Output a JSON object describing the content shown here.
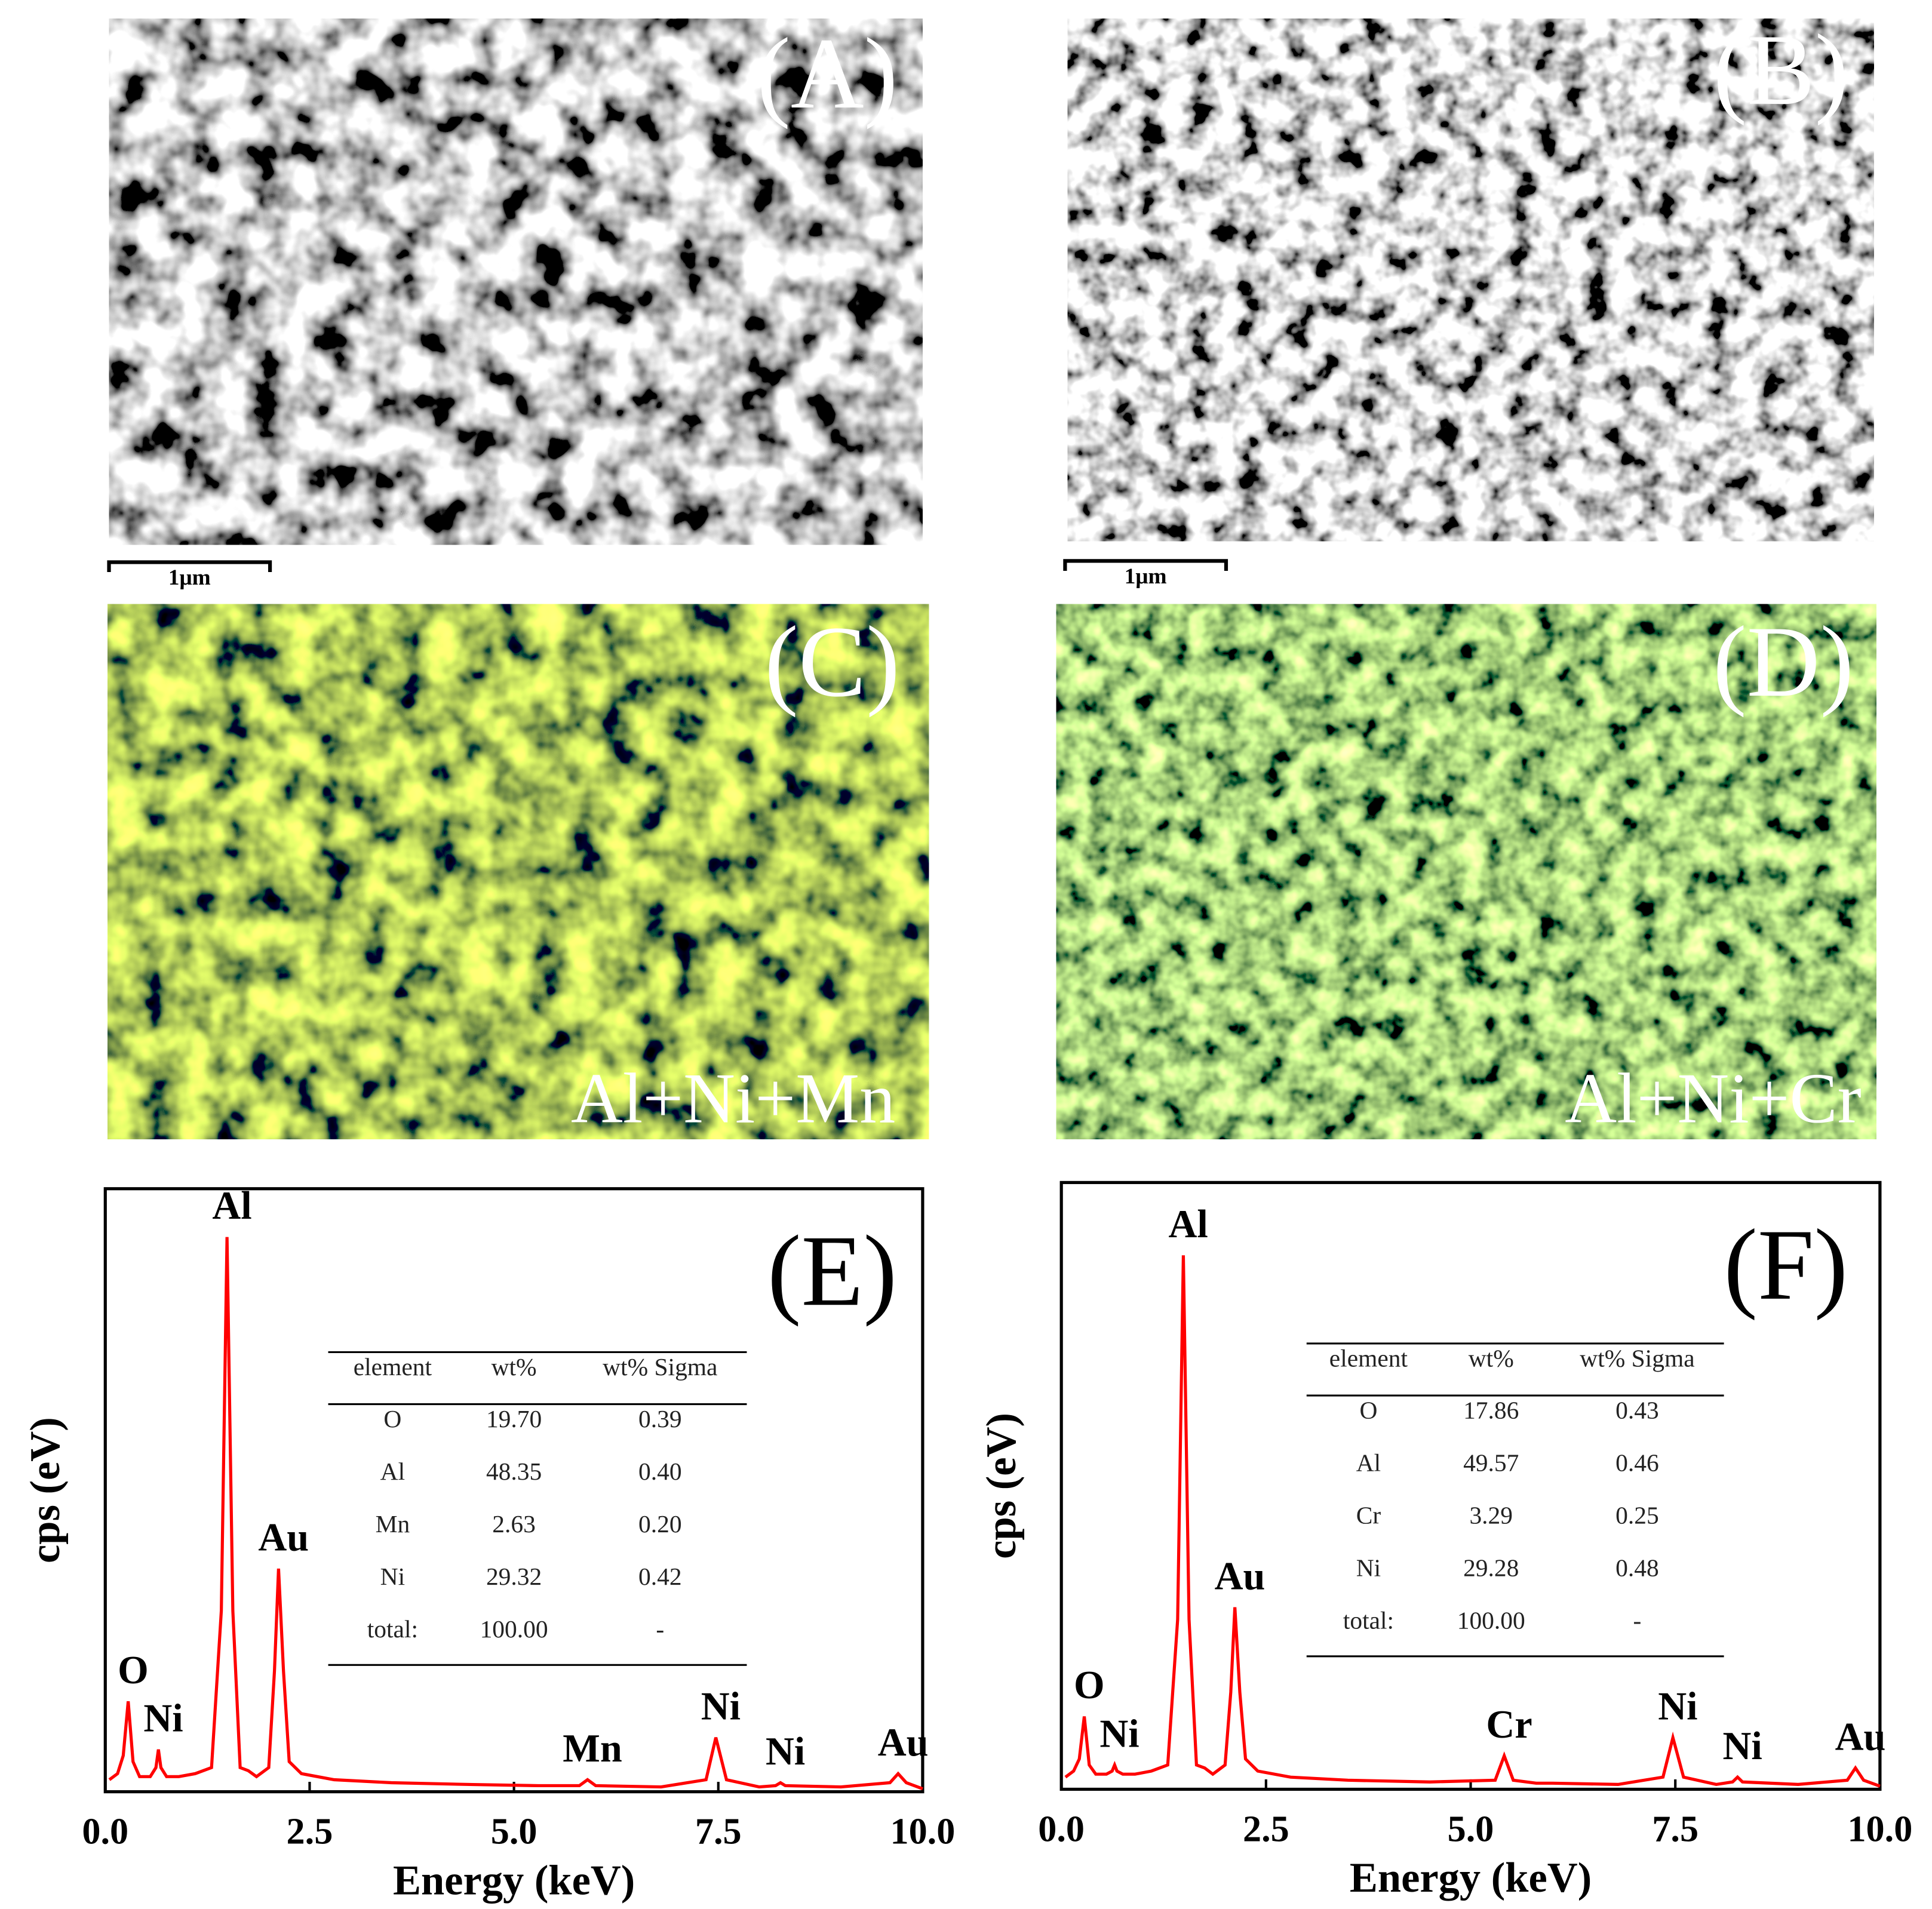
{
  "panels": [
    {
      "label": "(A)",
      "scale_bar": "1μm"
    },
    {
      "label": "(B)",
      "scale_bar": "1μm"
    },
    {
      "label": "(C)",
      "caption": "Al+Ni+Mn"
    },
    {
      "label": "(D)",
      "caption": "Al+Ni+Cr"
    }
  ],
  "chart_data": [
    {
      "type": "line",
      "panel_label": "(E)",
      "x_label": "Energy (keV)",
      "y_label": "cps (eV)",
      "xlim": [
        0,
        10
      ],
      "ylim": [
        0,
        100
      ],
      "xticks": [
        {
          "value": 0,
          "label": "0.0"
        },
        2.5,
        {
          "value": 5,
          "label": "5.0"
        },
        7.5,
        {
          "value": 10,
          "label": "10.0"
        }
      ],
      "series": [
        {
          "color": "#ff0000",
          "x": [
            0.05,
            0.15,
            0.22,
            0.28,
            0.34,
            0.42,
            0.55,
            0.62,
            0.65,
            0.68,
            0.75,
            0.9,
            1.1,
            1.3,
            1.42,
            1.49,
            1.56,
            1.65,
            1.75,
            1.85,
            2.0,
            2.07,
            2.12,
            2.18,
            2.25,
            2.4,
            2.8,
            3.5,
            4.5,
            5.3,
            5.41,
            5.52,
            5.8,
            5.9,
            6.0,
            6.8,
            7.35,
            7.47,
            7.6,
            8.0,
            8.2,
            8.26,
            8.32,
            9.0,
            9.6,
            9.7,
            9.8,
            10.0
          ],
          "values": [
            2,
            3,
            6,
            15,
            5,
            2.5,
            2.5,
            4,
            7,
            4,
            2.5,
            2.5,
            3,
            4,
            30,
            92,
            30,
            4,
            3.5,
            2.5,
            4,
            20,
            37,
            20,
            5,
            3,
            2,
            1.5,
            1.2,
            1,
            1,
            1,
            1,
            2,
            1,
            0.8,
            2,
            9,
            2,
            0.8,
            1,
            1.5,
            1,
            0.8,
            1.5,
            3,
            1.5,
            0.5
          ]
        }
      ],
      "annotations": [
        {
          "text": "O",
          "x": 0.28
        },
        {
          "text": "Ni",
          "x": 0.65
        },
        {
          "text": "Al",
          "x": 1.49
        },
        {
          "text": "Au",
          "x": 2.12
        },
        {
          "text": "Mn",
          "x": 5.9
        },
        {
          "text": "Ni",
          "x": 7.47
        },
        {
          "text": "Ni",
          "x": 8.26
        },
        {
          "text": "Au",
          "x": 9.7
        }
      ],
      "table": {
        "columns": [
          "element",
          "wt%",
          "wt% Sigma"
        ],
        "rows": [
          [
            "O",
            "19.70",
            "0.39"
          ],
          [
            "Al",
            "48.35",
            "0.40"
          ],
          [
            "Mn",
            "2.63",
            "0.20"
          ],
          [
            "Ni",
            "29.32",
            "0.42"
          ],
          [
            "total:",
            "100.00",
            "-"
          ]
        ]
      }
    },
    {
      "type": "line",
      "panel_label": "(F)",
      "x_label": "Energy (keV)",
      "y_label": "cps (eV)",
      "xlim": [
        0,
        10
      ],
      "ylim": [
        0,
        100
      ],
      "xticks": [
        {
          "value": 0,
          "label": "0.0"
        },
        2.5,
        {
          "value": 5,
          "label": "5.0"
        },
        7.5,
        {
          "value": 10,
          "label": "10.0"
        }
      ],
      "series": [
        {
          "color": "#ff0000",
          "x": [
            0.05,
            0.15,
            0.22,
            0.28,
            0.34,
            0.42,
            0.55,
            0.62,
            0.65,
            0.68,
            0.75,
            0.9,
            1.1,
            1.3,
            1.42,
            1.49,
            1.56,
            1.65,
            1.75,
            1.85,
            2.0,
            2.07,
            2.12,
            2.18,
            2.25,
            2.4,
            2.8,
            3.5,
            4.5,
            5.3,
            5.41,
            5.52,
            5.8,
            5.9,
            6.0,
            6.8,
            7.35,
            7.47,
            7.6,
            8.0,
            8.2,
            8.26,
            8.32,
            9.0,
            9.6,
            9.7,
            9.8,
            10.0
          ],
          "values": [
            2,
            3,
            5,
            12,
            4,
            2.5,
            2.5,
            3,
            4,
            3,
            2.5,
            2.5,
            3,
            4,
            28,
            88,
            28,
            4,
            3.5,
            2.5,
            4,
            16,
            30,
            16,
            5,
            3,
            2,
            1.5,
            1.2,
            1.5,
            5.5,
            1.5,
            1,
            1,
            1,
            0.8,
            2,
            8.5,
            2,
            0.8,
            1.2,
            2,
            1.2,
            0.8,
            1.5,
            3.5,
            1.5,
            0.5
          ]
        }
      ],
      "annotations": [
        {
          "text": "O",
          "x": 0.28
        },
        {
          "text": "Ni",
          "x": 0.65
        },
        {
          "text": "Al",
          "x": 1.49
        },
        {
          "text": "Au",
          "x": 2.12
        },
        {
          "text": "Cr",
          "x": 5.41
        },
        {
          "text": "Ni",
          "x": 7.47
        },
        {
          "text": "Ni",
          "x": 8.26
        },
        {
          "text": "Au",
          "x": 9.7
        }
      ],
      "table": {
        "columns": [
          "element",
          "wt%",
          "wt% Sigma"
        ],
        "rows": [
          [
            "O",
            "17.86",
            "0.43"
          ],
          [
            "Al",
            "49.57",
            "0.46"
          ],
          [
            "Cr",
            "3.29",
            "0.25"
          ],
          [
            "Ni",
            "29.28",
            "0.48"
          ],
          [
            "total:",
            "100.00",
            "-"
          ]
        ]
      }
    }
  ]
}
